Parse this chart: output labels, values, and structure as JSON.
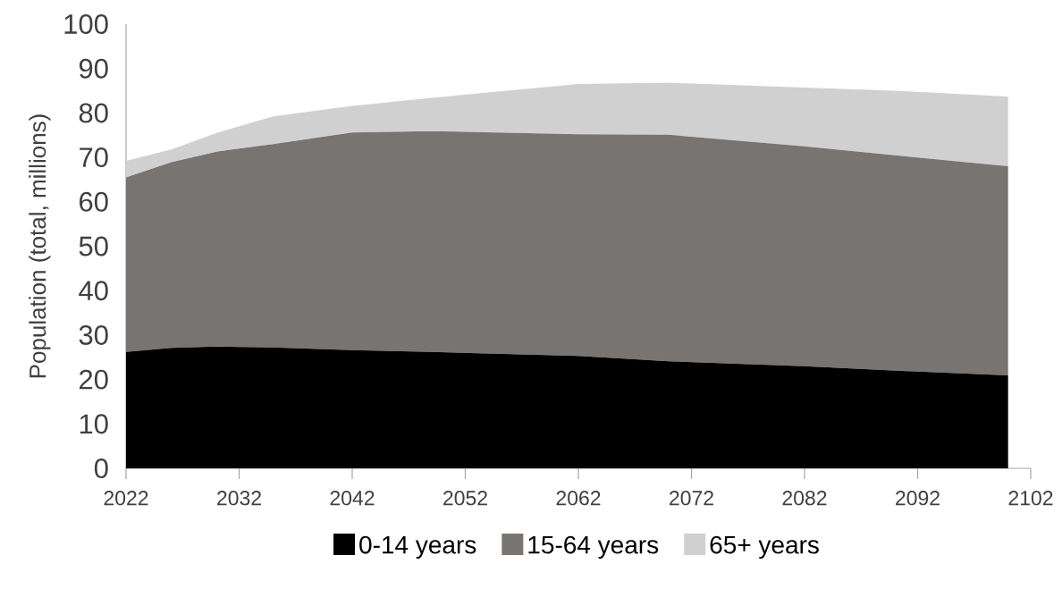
{
  "chart_data": {
    "type": "area",
    "stacked": true,
    "ylabel": "Population (total, millions)",
    "x": [
      2022,
      2026,
      2030,
      2035,
      2042,
      2049,
      2062,
      2070,
      2082,
      2091,
      2100
    ],
    "series": [
      {
        "name": "0-14 years",
        "color": "#000000",
        "values": [
          26.2,
          27.1,
          27.4,
          27.2,
          26.6,
          26.2,
          25.3,
          24.1,
          23.0,
          21.9,
          20.9
        ]
      },
      {
        "name": "15-64 years",
        "color": "#787471",
        "values": [
          39.3,
          41.8,
          43.9,
          45.8,
          49.0,
          49.7,
          49.9,
          51.0,
          49.5,
          48.3,
          47.1
        ]
      },
      {
        "name": "65+ years",
        "color": "#d0d0d0",
        "values": [
          3.7,
          2.9,
          4.2,
          6.2,
          6.0,
          7.5,
          11.3,
          11.7,
          13.2,
          14.7,
          15.7
        ]
      }
    ],
    "xlim": [
      2022,
      2102
    ],
    "ylim": [
      0,
      100
    ],
    "xticks": [
      2022,
      2032,
      2042,
      2052,
      2062,
      2072,
      2082,
      2092,
      2102
    ],
    "yticks": [
      0,
      10,
      20,
      30,
      40,
      50,
      60,
      70,
      80,
      90,
      100
    ],
    "legend": "bottom"
  }
}
